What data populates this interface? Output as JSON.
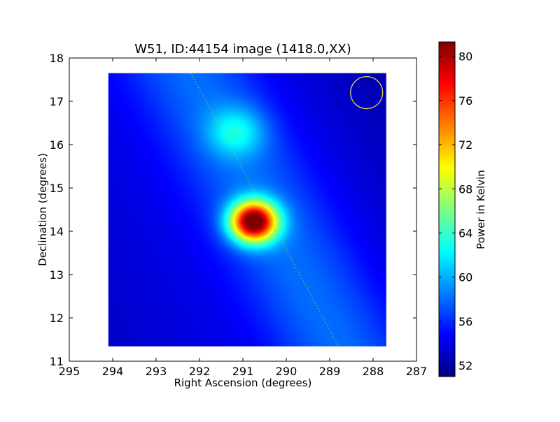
{
  "chart_data": {
    "type": "heatmap",
    "title": "W51, ID:44154 image (1418.0,XX)",
    "xlabel": "Right Ascension (degrees)",
    "ylabel": "Declination (degrees)",
    "xlim": [
      295,
      287
    ],
    "ylim": [
      11,
      18
    ],
    "xticks": [
      "295",
      "294",
      "293",
      "292",
      "291",
      "290",
      "289",
      "288",
      "287"
    ],
    "yticks": [
      "11",
      "12",
      "13",
      "14",
      "15",
      "16",
      "17",
      "18"
    ],
    "image_extent": {
      "ra": [
        294.1,
        287.7
      ],
      "dec": [
        11.35,
        17.65
      ]
    },
    "colormap": "jet",
    "colorbar": {
      "label": "Power in Kelvin",
      "range": [
        51,
        81.3
      ],
      "ticks": [
        "52",
        "56",
        "60",
        "64",
        "68",
        "72",
        "76",
        "80"
      ]
    },
    "background_level_k": 54.5,
    "sources": [
      {
        "ra": 290.75,
        "dec": 14.22,
        "peak_k": 81,
        "sigma_deg": 0.33
      },
      {
        "ra": 291.15,
        "dec": 16.3,
        "peak_k": 60,
        "sigma_deg": 0.4
      }
    ],
    "ridge": {
      "from": {
        "ra": 292.2,
        "dec": 17.65
      },
      "to": {
        "ra": 288.8,
        "dec": 11.35
      },
      "level_k": 58,
      "color": "#9acd32"
    },
    "beam_circle": {
      "ra": 288.15,
      "dec": 17.2,
      "radius_deg": 0.37,
      "color": "#e0d84a"
    }
  }
}
